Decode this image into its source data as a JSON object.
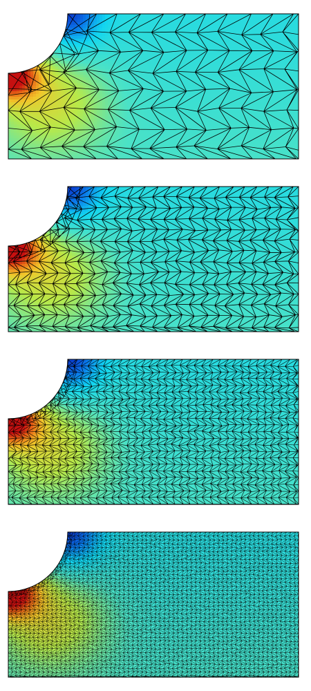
{
  "figure": {
    "panels": [
      {
        "name": "mesh-panel-coarse",
        "refinement_level": 1
      },
      {
        "name": "mesh-panel-medium",
        "refinement_level": 2
      },
      {
        "name": "mesh-panel-fine",
        "refinement_level": 3
      },
      {
        "name": "mesh-panel-finest",
        "refinement_level": 4
      }
    ],
    "colormap": [
      "#0a1fbf",
      "#0a78ea",
      "#12d6f0",
      "#4be2c6",
      "#b7e94a",
      "#f2c62a",
      "#e86a17",
      "#c61010"
    ],
    "mesh_line_color": "#000000",
    "outline_color": "#000000",
    "geometry": "rectangle-with-quarter-circle-cutout-top-left"
  }
}
